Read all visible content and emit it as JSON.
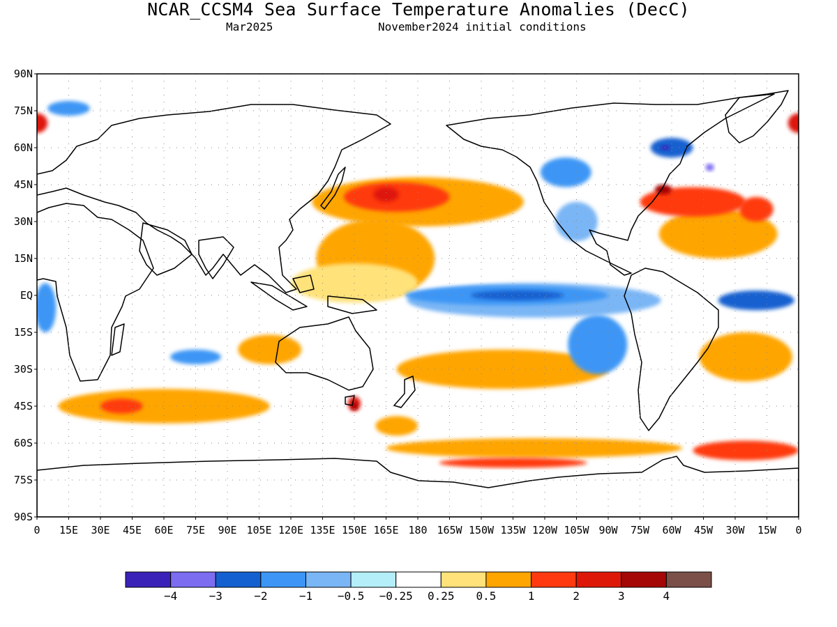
{
  "figure": {
    "title": "NCAR_CCSM4 Sea Surface Temperature Anomalies (DecC)",
    "valid_month": "Mar2025",
    "initial_conditions": "November2024 initial conditions"
  },
  "map": {
    "projection": "equirectangular",
    "lon_range": [
      0,
      360
    ],
    "lat_range": [
      -90,
      90
    ],
    "lat_ticks": [
      {
        "lat": 90,
        "label": "90N"
      },
      {
        "lat": 75,
        "label": "75N"
      },
      {
        "lat": 60,
        "label": "60N"
      },
      {
        "lat": 45,
        "label": "45N"
      },
      {
        "lat": 30,
        "label": "30N"
      },
      {
        "lat": 15,
        "label": "15N"
      },
      {
        "lat": 0,
        "label": "EQ"
      },
      {
        "lat": -15,
        "label": "15S"
      },
      {
        "lat": -30,
        "label": "30S"
      },
      {
        "lat": -45,
        "label": "45S"
      },
      {
        "lat": -60,
        "label": "60S"
      },
      {
        "lat": -75,
        "label": "75S"
      },
      {
        "lat": -90,
        "label": "90S"
      }
    ],
    "lon_ticks": [
      {
        "lon": 0,
        "label": "0"
      },
      {
        "lon": 15,
        "label": "15E"
      },
      {
        "lon": 30,
        "label": "30E"
      },
      {
        "lon": 45,
        "label": "45E"
      },
      {
        "lon": 60,
        "label": "60E"
      },
      {
        "lon": 75,
        "label": "75E"
      },
      {
        "lon": 90,
        "label": "90E"
      },
      {
        "lon": 105,
        "label": "105E"
      },
      {
        "lon": 120,
        "label": "120E"
      },
      {
        "lon": 135,
        "label": "135E"
      },
      {
        "lon": 150,
        "label": "150E"
      },
      {
        "lon": 165,
        "label": "165E"
      },
      {
        "lon": 180,
        "label": "180"
      },
      {
        "lon": 195,
        "label": "165W"
      },
      {
        "lon": 210,
        "label": "150W"
      },
      {
        "lon": 225,
        "label": "135W"
      },
      {
        "lon": 240,
        "label": "120W"
      },
      {
        "lon": 255,
        "label": "105W"
      },
      {
        "lon": 270,
        "label": "90W"
      },
      {
        "lon": 285,
        "label": "75W"
      },
      {
        "lon": 300,
        "label": "60W"
      },
      {
        "lon": 315,
        "label": "45W"
      },
      {
        "lon": 330,
        "label": "30W"
      },
      {
        "lon": 345,
        "label": "15W"
      },
      {
        "lon": 360,
        "label": "0"
      }
    ],
    "grid": "dotted"
  },
  "colorbar": {
    "colors": [
      "#3a22b8",
      "#7b6cf0",
      "#1560d0",
      "#3d96f5",
      "#7ab6f5",
      "#b4eef8",
      "#ffffff",
      "#ffe27a",
      "#ffa500",
      "#ff3a10",
      "#de1808",
      "#a50606",
      "#7a5048"
    ],
    "labels": [
      "−4",
      "−3",
      "−2",
      "−1",
      "−0.5",
      "−0.25",
      "0.25",
      "0.5",
      "1",
      "2",
      "3",
      "4"
    ]
  },
  "anomaly_blobs": [
    {
      "level": 1,
      "lon": 180,
      "lat": 38,
      "rlon": 50,
      "rlat": 10
    },
    {
      "level": 2,
      "lon": 170,
      "lat": 40,
      "rlon": 25,
      "rlat": 6
    },
    {
      "level": 3,
      "lon": 165,
      "lat": 41,
      "rlon": 6,
      "rlat": 3
    },
    {
      "level": 1,
      "lon": 160,
      "lat": 15,
      "rlon": 28,
      "rlat": 16
    },
    {
      "level": 0.5,
      "lon": 150,
      "lat": 5,
      "rlon": 30,
      "rlat": 8
    },
    {
      "level": -1,
      "lon": 222,
      "lat": 0,
      "rlon": 48,
      "rlat": 4
    },
    {
      "level": -2,
      "lon": 227,
      "lat": 0,
      "rlon": 22,
      "rlat": 2
    },
    {
      "level": -0.5,
      "lon": 235,
      "lat": -2,
      "rlon": 60,
      "rlat": 7
    },
    {
      "level": -1,
      "lon": 265,
      "lat": -20,
      "rlon": 14,
      "rlat": 12
    },
    {
      "level": -2,
      "lon": 340,
      "lat": -2,
      "rlon": 18,
      "rlat": 4
    },
    {
      "level": -1,
      "lon": 4,
      "lat": -5,
      "rlon": 5,
      "rlat": 10
    },
    {
      "level": 2,
      "lon": 310,
      "lat": 38,
      "rlon": 25,
      "rlat": 6
    },
    {
      "level": 4,
      "lon": 296,
      "lat": 43,
      "rlon": 4,
      "rlat": 2
    },
    {
      "level": 1,
      "lon": 322,
      "lat": 25,
      "rlon": 28,
      "rlat": 10
    },
    {
      "level": 2,
      "lon": 340,
      "lat": 35,
      "rlon": 8,
      "rlat": 5
    },
    {
      "level": -2,
      "lon": 300,
      "lat": 60,
      "rlon": 10,
      "rlat": 4
    },
    {
      "level": -4,
      "lon": 297,
      "lat": 60,
      "rlon": 2,
      "rlat": 1
    },
    {
      "level": -3,
      "lon": 318,
      "lat": 52,
      "rlon": 2,
      "rlat": 1.5
    },
    {
      "level": -1,
      "lon": 250,
      "lat": 50,
      "rlon": 12,
      "rlat": 6
    },
    {
      "level": -0.5,
      "lon": 255,
      "lat": 30,
      "rlon": 10,
      "rlat": 8
    },
    {
      "level": 1,
      "lon": 60,
      "lat": -45,
      "rlon": 50,
      "rlat": 7
    },
    {
      "level": 2,
      "lon": 40,
      "lat": -45,
      "rlon": 10,
      "rlat": 3
    },
    {
      "level": 3,
      "lon": 150,
      "lat": -44,
      "rlon": 3,
      "rlat": 3
    },
    {
      "level": 4,
      "lon": 150,
      "lat": -45,
      "rlon": 1.5,
      "rlat": 1.5
    },
    {
      "level": 1,
      "lon": 220,
      "lat": -30,
      "rlon": 50,
      "rlat": 8
    },
    {
      "level": 1,
      "lon": 235,
      "lat": -62,
      "rlon": 70,
      "rlat": 4
    },
    {
      "level": 2,
      "lon": 225,
      "lat": -68,
      "rlon": 35,
      "rlat": 2
    },
    {
      "level": 1,
      "lon": 335,
      "lat": -25,
      "rlon": 22,
      "rlat": 10
    },
    {
      "level": 2,
      "lon": 335,
      "lat": -63,
      "rlon": 25,
      "rlat": 4
    },
    {
      "level": -1,
      "lon": 75,
      "lat": -25,
      "rlon": 12,
      "rlat": 3
    },
    {
      "level": 1,
      "lon": 110,
      "lat": -22,
      "rlon": 15,
      "rlat": 6
    },
    {
      "level": 3,
      "lon": 0,
      "lat": 70,
      "rlon": 5,
      "rlat": 4
    },
    {
      "level": 3,
      "lon": 360,
      "lat": 70,
      "rlon": 5,
      "rlat": 4
    },
    {
      "level": -1,
      "lon": 15,
      "lat": 76,
      "rlon": 10,
      "rlat": 3
    },
    {
      "level": 1,
      "lon": 170,
      "lat": -53,
      "rlon": 10,
      "rlat": 4
    }
  ]
}
